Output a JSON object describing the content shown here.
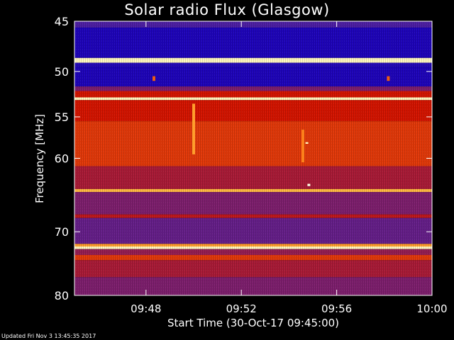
{
  "chart_data": {
    "type": "heatmap",
    "title": "Solar radio Flux (Glasgow)",
    "xlabel": "Start Time (30-Oct-17 09:45:00)",
    "ylabel": "Frequency [MHz]",
    "x_range": [
      "09:45:00",
      "10:00:00"
    ],
    "x_ticks": [
      "09:48",
      "09:52",
      "09:56",
      "10:00"
    ],
    "y_range": [
      45,
      80
    ],
    "y_inverted": true,
    "y_ticks": [
      45,
      50,
      55,
      60,
      70,
      80
    ],
    "y_scale": "log",
    "colormap": [
      "#1a00b8",
      "#3c1eb4",
      "#8c1e5a",
      "#d21400",
      "#ff8c1e",
      "#ffe664",
      "#ffffe6"
    ],
    "bands": [
      {
        "from_mhz": 45.0,
        "to_mhz": 45.6,
        "level": 0.2
      },
      {
        "from_mhz": 45.6,
        "to_mhz": 48.6,
        "level": 0.02
      },
      {
        "from_mhz": 48.6,
        "to_mhz": 49.1,
        "level": 0.95
      },
      {
        "from_mhz": 49.1,
        "to_mhz": 49.5,
        "level": 0.05
      },
      {
        "from_mhz": 49.5,
        "to_mhz": 51.6,
        "level": 0.02
      },
      {
        "from_mhz": 51.6,
        "to_mhz": 52.1,
        "level": 0.3
      },
      {
        "from_mhz": 52.1,
        "to_mhz": 52.8,
        "level": 0.5
      },
      {
        "from_mhz": 52.8,
        "to_mhz": 53.1,
        "level": 0.95
      },
      {
        "from_mhz": 53.1,
        "to_mhz": 55.5,
        "level": 0.5
      },
      {
        "from_mhz": 55.5,
        "to_mhz": 61.0,
        "level": 0.55
      },
      {
        "from_mhz": 61.0,
        "to_mhz": 64.0,
        "level": 0.4
      },
      {
        "from_mhz": 64.0,
        "to_mhz": 64.4,
        "level": 0.75
      },
      {
        "from_mhz": 64.4,
        "to_mhz": 67.5,
        "level": 0.3
      },
      {
        "from_mhz": 67.5,
        "to_mhz": 68.0,
        "level": 0.45
      },
      {
        "from_mhz": 68.0,
        "to_mhz": 71.8,
        "level": 0.25
      },
      {
        "from_mhz": 71.8,
        "to_mhz": 72.2,
        "level": 0.7
      },
      {
        "from_mhz": 72.2,
        "to_mhz": 72.6,
        "level": 0.95
      },
      {
        "from_mhz": 72.6,
        "to_mhz": 73.5,
        "level": 0.35
      },
      {
        "from_mhz": 73.5,
        "to_mhz": 74.3,
        "level": 0.55
      },
      {
        "from_mhz": 74.3,
        "to_mhz": 77.0,
        "level": 0.4
      },
      {
        "from_mhz": 77.0,
        "to_mhz": 80.0,
        "level": 0.3
      }
    ],
    "events": [
      {
        "time": "09:50:00",
        "from_mhz": 53.5,
        "to_mhz": 59.5,
        "level": 0.7
      },
      {
        "time": "09:54:45",
        "from_mhz": 58.0,
        "to_mhz": 58.2,
        "level": 0.95
      },
      {
        "time": "09:54:50",
        "from_mhz": 63.3,
        "to_mhz": 63.6,
        "level": 1.0
      },
      {
        "time": "09:54:35",
        "from_mhz": 56.5,
        "to_mhz": 60.5,
        "level": 0.65
      },
      {
        "time": "09:48:20",
        "from_mhz": 50.5,
        "to_mhz": 51.0,
        "level": 0.6
      },
      {
        "time": "09:58:10",
        "from_mhz": 50.5,
        "to_mhz": 51.0,
        "level": 0.6
      }
    ]
  },
  "footer": {
    "updated": "Updated Fri Nov  3 13:45:35 2017"
  }
}
